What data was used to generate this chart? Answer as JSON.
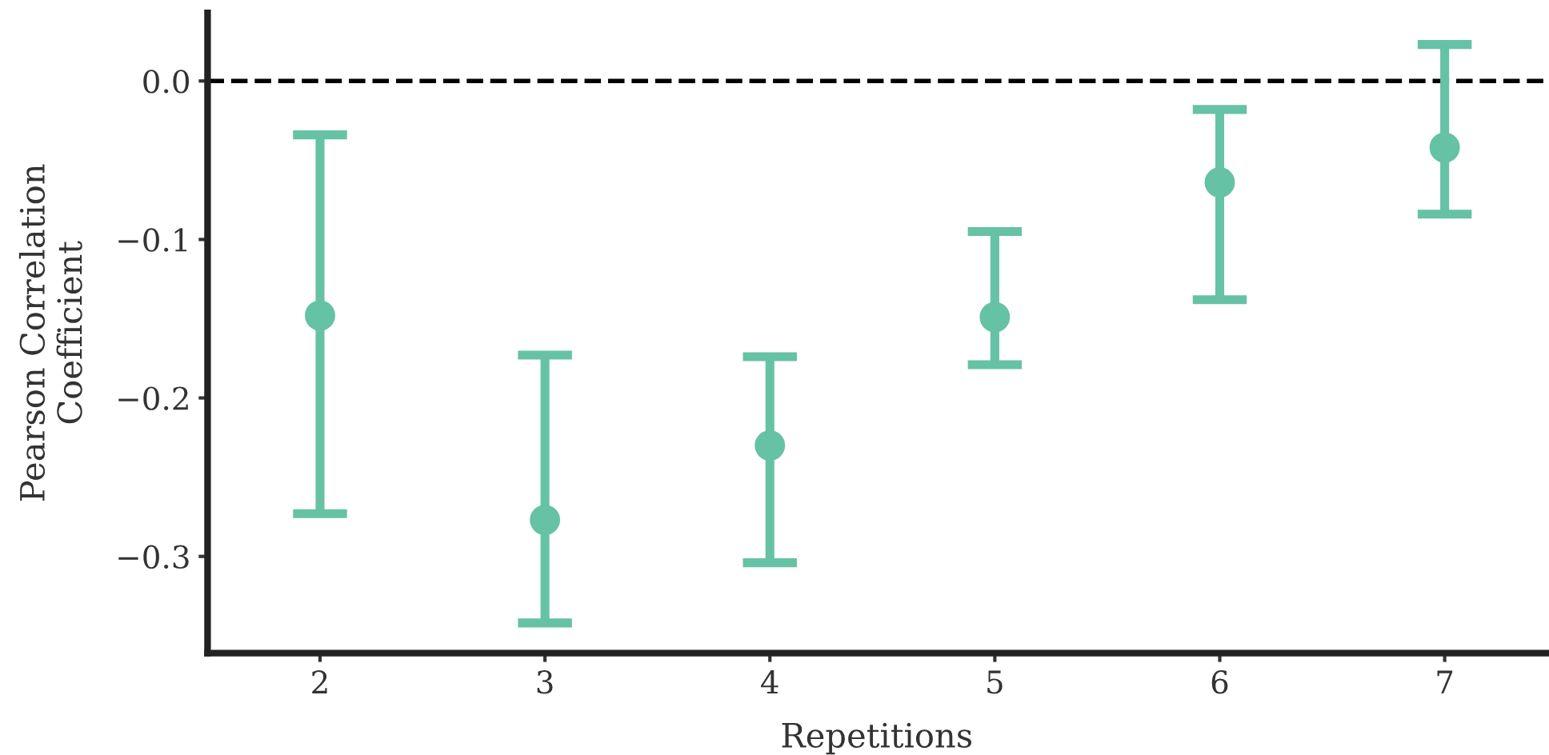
{
  "chart_data": {
    "type": "scatter",
    "xlabel": "Repetitions",
    "ylabel": "Pearson Correlation\nCoefficient",
    "x": [
      2,
      3,
      4,
      5,
      6,
      7
    ],
    "series": [
      {
        "color": "#66c2a5",
        "values": [
          -0.148,
          -0.277,
          -0.23,
          -0.149,
          -0.064,
          -0.042
        ],
        "errors": [
          [
            -0.273,
            -0.034
          ],
          [
            -0.342,
            -0.173
          ],
          [
            -0.304,
            -0.174
          ],
          [
            -0.179,
            -0.095
          ],
          [
            -0.138,
            -0.018
          ],
          [
            -0.084,
            0.023
          ]
        ]
      }
    ],
    "xlim": [
      1.5,
      7.45
    ],
    "ylim": [
      -0.361,
      0.043
    ],
    "xticks": [
      2,
      3,
      4,
      5,
      6,
      7
    ],
    "yticks": [
      {
        "value": 0.0,
        "label": "0.0"
      },
      {
        "value": -0.1,
        "label": "−0.1"
      },
      {
        "value": -0.2,
        "label": "−0.2"
      },
      {
        "value": -0.3,
        "label": "−0.3"
      }
    ],
    "ref_lines": [
      {
        "axis": "y",
        "value": 0.0,
        "color": "#000000",
        "line_style": "dashed"
      }
    ],
    "marker": "circle",
    "grid": false,
    "legend": false
  }
}
